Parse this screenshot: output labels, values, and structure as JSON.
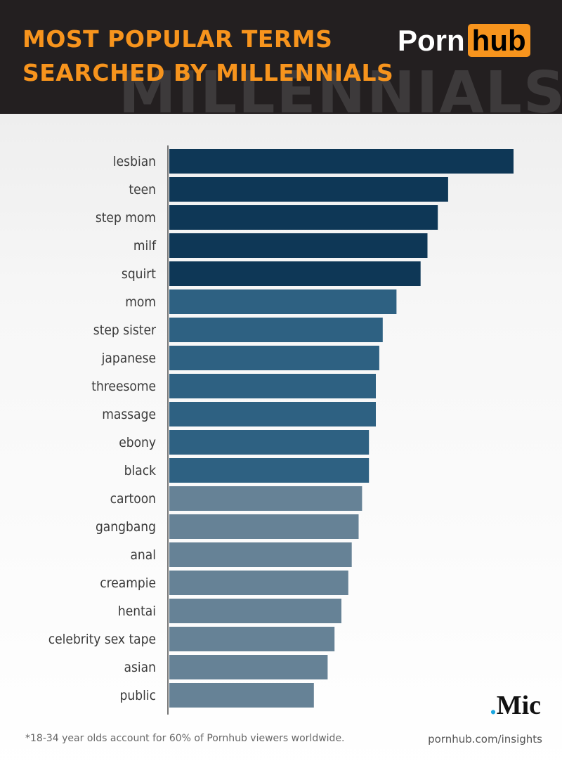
{
  "header": {
    "title_lines": [
      "MOST POPULAR TERMS",
      "SEARCHED BY MILLENNIALS"
    ],
    "logo": [
      "Porn",
      "hub"
    ],
    "watermark": "MILLENNIALS"
  },
  "chart_data": {
    "type": "bar",
    "orientation": "horizontal",
    "categories": [
      "lesbian",
      "teen",
      "step mom",
      "milf",
      "squirt",
      "mom",
      "step sister",
      "japanese",
      "threesome",
      "massage",
      "ebony",
      "black",
      "cartoon",
      "gangbang",
      "anal",
      "creampie",
      "hentai",
      "celebrity sex tape",
      "asian",
      "public"
    ],
    "values": [
      100,
      81,
      78,
      75,
      73,
      66,
      62,
      61,
      60,
      60,
      58,
      58,
      56,
      55,
      53,
      52,
      50,
      48,
      46,
      42
    ],
    "colors": [
      "#0e3756",
      "#0e3756",
      "#0e3756",
      "#0e3756",
      "#0e3756",
      "#2e6182",
      "#2e6182",
      "#2e6182",
      "#2e6182",
      "#2e6182",
      "#2e6182",
      "#2e6182",
      "#668296",
      "#668296",
      "#668296",
      "#668296",
      "#668296",
      "#668296",
      "#668296",
      "#668296"
    ],
    "xlim": [
      0,
      100
    ]
  },
  "footer": {
    "note": "*18-34 year olds account for 60% of Pornhub viewers worldwide.",
    "source": "pornhub.com/insights",
    "brand": [
      ".",
      "Mic"
    ]
  }
}
